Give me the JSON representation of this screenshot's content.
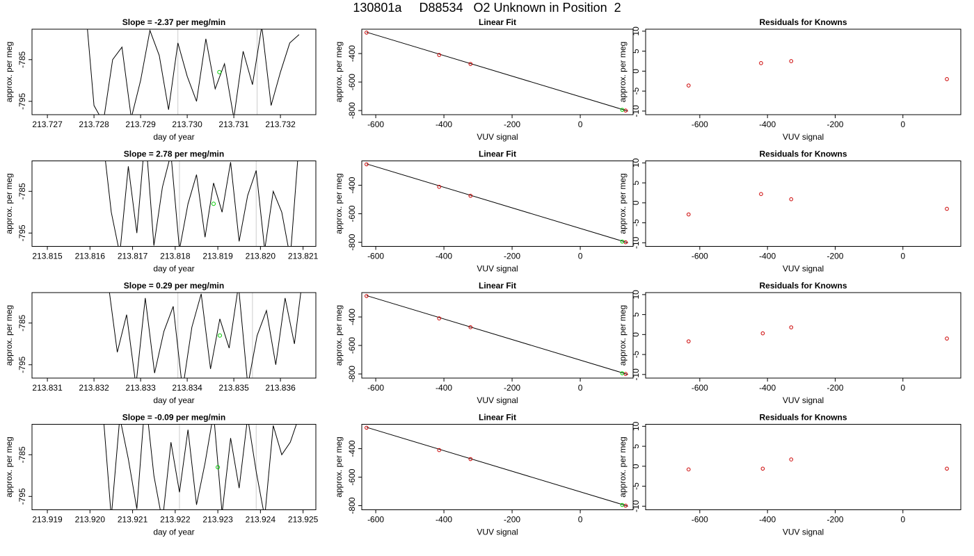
{
  "title": "130801a     D88534   O2 Unknown in Position  2",
  "chart_data": [
    {
      "type": "line",
      "title": "Slope =  -2.37  per meg/min",
      "x_label": "day of year",
      "y_label": "approx. per meg",
      "x": [
        213.7278,
        213.728,
        213.7282,
        213.7284,
        213.7286,
        213.7288,
        213.729,
        213.7292,
        213.7294,
        213.7296,
        213.7298,
        213.73,
        213.7302,
        213.7304,
        213.7306,
        213.7308,
        213.731,
        213.7312,
        213.7314,
        213.7316,
        213.7318,
        213.732,
        213.7322,
        213.7324
      ],
      "series": [
        {
          "color": "#000000",
          "values": [
            -770,
            -796,
            -800,
            -785,
            -782,
            -799,
            -790,
            -778,
            -784,
            -797,
            -781,
            -789,
            -795,
            -780,
            -792,
            -786,
            -799,
            -783,
            -791,
            -777,
            -796,
            -788,
            -781,
            -779
          ]
        }
      ],
      "points": {
        "color": "#00cc00",
        "x": [
          213.73069
        ],
        "values": [
          -788
        ]
      },
      "vlines": {
        "color": "#cccccc",
        "x": [
          213.7298,
          213.7315
        ]
      },
      "xlim": [
        213.72667,
        213.73276
      ],
      "ylim": [
        -798.2,
        -777.7
      ],
      "xticks": [
        213.727,
        213.728,
        213.729,
        {
          "value": 213.73,
          "label": "213.730"
        },
        213.731,
        213.732
      ],
      "yticks": [
        -785,
        -795
      ]
    },
    {
      "type": "scatter",
      "title": "Linear Fit",
      "x_label": "VUV signal",
      "y_label": "approx. per meg",
      "series": [
        {
          "color": "#cc0000",
          "x": [
            -627,
            -414,
            -322,
            133
          ],
          "values": [
            -253,
            -410,
            -473,
            -800
          ]
        },
        {
          "color": "#00cc00",
          "x": [
            123
          ],
          "values": [
            -795
          ]
        }
      ],
      "fit_line": {
        "color": "#000000",
        "x": [
          -627,
          140
        ],
        "values": [
          -250,
          -804
        ]
      },
      "xlim": [
        -641,
        155
      ],
      "ylim": [
        -829,
        -229
      ],
      "xticks": [
        -600,
        -400,
        -200,
        0
      ],
      "yticks": [
        -400,
        -600,
        -800
      ]
    },
    {
      "type": "scatter",
      "title": "Residuals for Knowns",
      "x_label": "VUV signal",
      "y_label": "approx. per meg",
      "series": [
        {
          "color": "#cc0000",
          "x": [
            -633,
            -419,
            -330,
            130
          ],
          "values": [
            -3.6,
            2.0,
            2.5,
            -2.0
          ]
        }
      ],
      "xlim": [
        -760,
        171
      ],
      "ylim": [
        -10.9,
        10.5
      ],
      "xticks": [
        -600,
        -400,
        -200,
        0
      ],
      "yticks": [
        -10,
        -5,
        0,
        5,
        10
      ]
    },
    {
      "type": "line",
      "title": "Slope =  2.78  per meg/min",
      "x_label": "day of year",
      "y_label": "approx. per meg",
      "x": [
        213.8163,
        213.8165,
        213.8167,
        213.8169,
        213.8171,
        213.8173,
        213.8175,
        213.8177,
        213.8179,
        213.8181,
        213.8183,
        213.8185,
        213.8187,
        213.8189,
        213.8191,
        213.8193,
        213.8195,
        213.8197,
        213.8199,
        213.8201,
        213.8203,
        213.8205,
        213.8207,
        213.8209
      ],
      "series": [
        {
          "color": "#000000",
          "values": [
            -772,
            -790,
            -800,
            -779,
            -795,
            -771,
            -798,
            -784,
            -776,
            -799,
            -788,
            -781,
            -796,
            -783,
            -790,
            -778,
            -797,
            -786,
            -780,
            -799,
            -785,
            -790,
            -801,
            -774
          ]
        }
      ],
      "points": {
        "color": "#00cc00",
        "x": [
          213.8189
        ],
        "values": [
          -788
        ]
      },
      "vlines": {
        "color": "#cccccc",
        "x": [
          213.8181,
          213.8199
        ]
      },
      "xlim": [
        213.81464,
        213.8213
      ],
      "ylim": [
        -798.2,
        -777.7
      ],
      "xticks": [
        213.815,
        213.816,
        213.817,
        213.818,
        213.819,
        {
          "value": 213.82,
          "label": "213.820"
        },
        213.821
      ],
      "yticks": [
        -785,
        -795
      ]
    },
    {
      "type": "scatter",
      "title": "Linear Fit",
      "x_label": "VUV signal",
      "y_label": "approx. per meg",
      "series": [
        {
          "color": "#cc0000",
          "x": [
            -627,
            -414,
            -322,
            133
          ],
          "values": [
            -253,
            -411,
            -474,
            -800
          ]
        },
        {
          "color": "#00cc00",
          "x": [
            123
          ],
          "values": [
            -795
          ]
        }
      ],
      "fit_line": {
        "color": "#000000",
        "x": [
          -627,
          140
        ],
        "values": [
          -250,
          -804
        ]
      },
      "xlim": [
        -641,
        155
      ],
      "ylim": [
        -829,
        -229
      ],
      "xticks": [
        -600,
        -400,
        -200,
        0
      ],
      "yticks": [
        -400,
        -600,
        -800
      ]
    },
    {
      "type": "scatter",
      "title": "Residuals for Knowns",
      "x_label": "VUV signal",
      "y_label": "approx. per meg",
      "series": [
        {
          "color": "#cc0000",
          "x": [
            -633,
            -419,
            -330,
            130
          ],
          "values": [
            -2.9,
            2.2,
            0.9,
            -1.5
          ]
        }
      ],
      "xlim": [
        -760,
        171
      ],
      "ylim": [
        -10.9,
        10.5
      ],
      "xticks": [
        -600,
        -400,
        -200,
        0
      ],
      "yticks": [
        -10,
        -5,
        0,
        5,
        10
      ]
    },
    {
      "type": "line",
      "title": "Slope =  0.29  per meg/min",
      "x_label": "day of year",
      "y_label": "approx. per meg",
      "x": [
        213.8323,
        213.8325,
        213.8327,
        213.8329,
        213.8331,
        213.8333,
        213.8335,
        213.8337,
        213.8339,
        213.8341,
        213.8343,
        213.8345,
        213.8347,
        213.8349,
        213.8351,
        213.8353,
        213.8355,
        213.8357,
        213.8359,
        213.8361,
        213.8363,
        213.8365
      ],
      "series": [
        {
          "color": "#000000",
          "values": [
            -775,
            -792,
            -783,
            -800,
            -779,
            -797,
            -787,
            -781,
            -801,
            -786,
            -778,
            -796,
            -784,
            -791,
            -776,
            -800,
            -788,
            -782,
            -795,
            -779,
            -790,
            -772
          ]
        }
      ],
      "points": {
        "color": "#00cc00",
        "x": [
          213.8347
        ],
        "values": [
          -788
        ]
      },
      "vlines": {
        "color": "#cccccc",
        "x": [
          213.8338,
          213.8354
        ]
      },
      "xlim": [
        213.83067,
        213.83676
      ],
      "ylim": [
        -798.2,
        -777.7
      ],
      "xticks": [
        213.831,
        213.832,
        213.833,
        213.834,
        213.835,
        213.836
      ],
      "yticks": [
        -785,
        -795
      ]
    },
    {
      "type": "scatter",
      "title": "Linear Fit",
      "x_label": "VUV signal",
      "y_label": "approx. per meg",
      "series": [
        {
          "color": "#cc0000",
          "x": [
            -627,
            -414,
            -322,
            133
          ],
          "values": [
            -253,
            -410,
            -472,
            -800
          ]
        },
        {
          "color": "#00cc00",
          "x": [
            123
          ],
          "values": [
            -795
          ]
        }
      ],
      "fit_line": {
        "color": "#000000",
        "x": [
          -627,
          140
        ],
        "values": [
          -250,
          -804
        ]
      },
      "xlim": [
        -641,
        155
      ],
      "ylim": [
        -829,
        -229
      ],
      "xticks": [
        -600,
        -400,
        -200,
        0
      ],
      "yticks": [
        -400,
        -600,
        -800
      ]
    },
    {
      "type": "scatter",
      "title": "Residuals for Knowns",
      "x_label": "VUV signal",
      "y_label": "approx. per meg",
      "series": [
        {
          "color": "#cc0000",
          "x": [
            -633,
            -414,
            -330,
            130
          ],
          "values": [
            -1.7,
            0.3,
            1.8,
            -1.0
          ]
        }
      ],
      "xlim": [
        -760,
        171
      ],
      "ylim": [
        -10.9,
        10.5
      ],
      "xticks": [
        -600,
        -400,
        -200,
        0
      ],
      "yticks": [
        -10,
        -5,
        0,
        5,
        10
      ]
    },
    {
      "type": "line",
      "title": "Slope =  -0.09  per meg/min",
      "x_label": "day of year",
      "y_label": "approx. per meg",
      "x": [
        213.9203,
        213.9205,
        213.9207,
        213.9209,
        213.9211,
        213.9213,
        213.9215,
        213.9217,
        213.9219,
        213.9221,
        213.9223,
        213.9225,
        213.9227,
        213.9229,
        213.9231,
        213.9233,
        213.9235,
        213.9237,
        213.9239,
        213.9241,
        213.9243,
        213.9245,
        213.9247,
        213.9249
      ],
      "series": [
        {
          "color": "#000000",
          "values": [
            -774,
            -800,
            -776,
            -786,
            -798,
            -771,
            -790,
            -801,
            -782,
            -794,
            -779,
            -797,
            -787,
            -775,
            -799,
            -781,
            -793,
            -776,
            -789,
            -800,
            -778,
            -785,
            -782,
            -776
          ]
        }
      ],
      "points": {
        "color": "#00cc00",
        "x": [
          213.923
        ],
        "values": [
          -788
        ]
      },
      "vlines": {
        "color": "#cccccc",
        "x": [
          213.9221,
          213.9239
        ]
      },
      "xlim": [
        213.91864,
        213.9253
      ],
      "ylim": [
        -798.2,
        -777.7
      ],
      "xticks": [
        213.919,
        {
          "value": 213.92,
          "label": "213.920"
        },
        213.921,
        213.922,
        213.923,
        213.924,
        213.925
      ],
      "yticks": [
        -785,
        -795
      ]
    },
    {
      "type": "scatter",
      "title": "Linear Fit",
      "x_label": "VUV signal",
      "y_label": "approx. per meg",
      "series": [
        {
          "color": "#cc0000",
          "x": [
            -627,
            -414,
            -322,
            133
          ],
          "values": [
            -253,
            -410,
            -473,
            -800
          ]
        },
        {
          "color": "#00cc00",
          "x": [
            123
          ],
          "values": [
            -795
          ]
        }
      ],
      "fit_line": {
        "color": "#000000",
        "x": [
          -627,
          140
        ],
        "values": [
          -250,
          -804
        ]
      },
      "xlim": [
        -641,
        155
      ],
      "ylim": [
        -829,
        -229
      ],
      "xticks": [
        -600,
        -400,
        -200,
        0
      ],
      "yticks": [
        -400,
        -600,
        -800
      ]
    },
    {
      "type": "scatter",
      "title": "Residuals for Knowns",
      "x_label": "VUV signal",
      "y_label": "approx. per meg",
      "series": [
        {
          "color": "#cc0000",
          "x": [
            -633,
            -414,
            -330,
            130
          ],
          "values": [
            -0.8,
            -0.6,
            1.7,
            -0.6
          ]
        }
      ],
      "xlim": [
        -760,
        171
      ],
      "ylim": [
        -10.9,
        10.5
      ],
      "xticks": [
        -600,
        -400,
        -200,
        0
      ],
      "yticks": [
        -10,
        -5,
        0,
        5,
        10
      ]
    }
  ]
}
